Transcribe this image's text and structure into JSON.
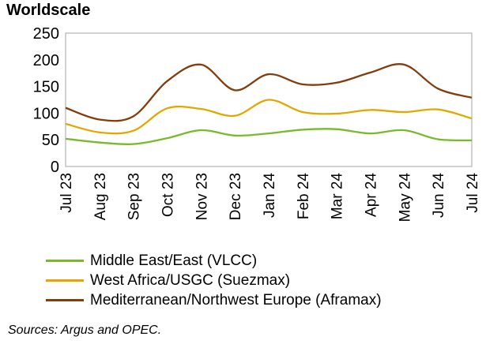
{
  "chart_data": {
    "type": "line",
    "title": "Worldscale",
    "ylabel": "Worldscale",
    "xlabel": "",
    "ylim": [
      0,
      250
    ],
    "yticks": [
      0,
      50,
      100,
      150,
      200,
      250
    ],
    "categories": [
      "Jul 23",
      "Aug 23",
      "Sep 23",
      "Oct 23",
      "Nov 23",
      "Dec 23",
      "Jan 24",
      "Feb 24",
      "Mar 24",
      "Apr 24",
      "May 24",
      "Jun 24",
      "Jul 24"
    ],
    "series": [
      {
        "name": "Middle East/East (VLCC)",
        "color": "#77bb2a",
        "values": [
          52,
          45,
          42,
          53,
          68,
          58,
          62,
          69,
          70,
          62,
          68,
          51,
          49
        ]
      },
      {
        "name": "West Africa/USGC (Suezmax)",
        "color": "#e3a800",
        "values": [
          80,
          64,
          67,
          109,
          108,
          95,
          125,
          102,
          99,
          106,
          102,
          107,
          90
        ]
      },
      {
        "name": "Mediterranean/Northwest Europe (Aframax)",
        "color": "#843c0c",
        "values": [
          110,
          88,
          94,
          160,
          191,
          143,
          173,
          154,
          157,
          176,
          191,
          146,
          129
        ]
      }
    ],
    "legend_position": "bottom",
    "grid": false
  },
  "source": "Sources: Argus and OPEC."
}
